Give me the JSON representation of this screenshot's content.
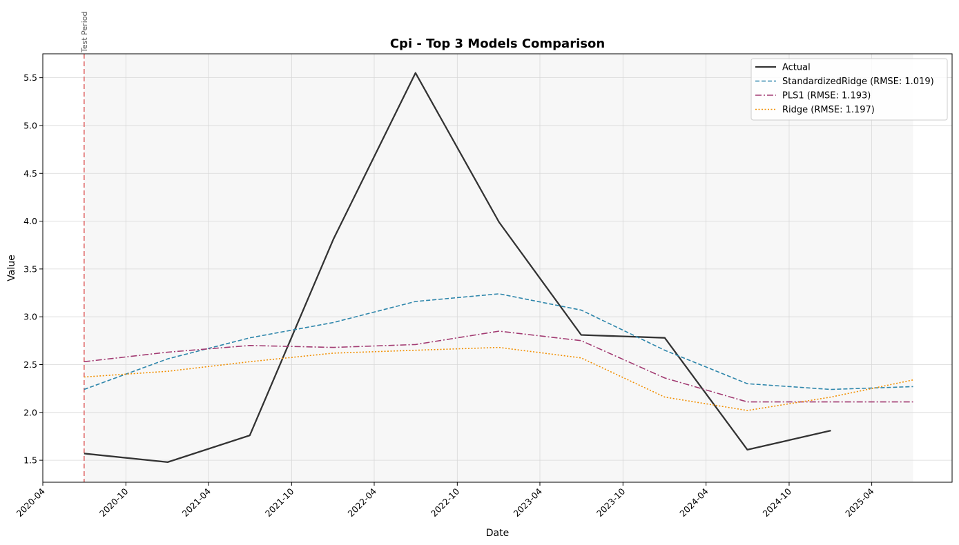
{
  "chart_data": {
    "type": "line",
    "title": "Cpi - Top 3 Models Comparison",
    "xlabel": "Date",
    "ylabel": "Value",
    "xlim": [
      "2020-04-01",
      "2025-09-25"
    ],
    "ylim": [
      1.27,
      5.75
    ],
    "x_ticks": [
      "2020-04",
      "2020-10",
      "2021-04",
      "2021-10",
      "2022-04",
      "2022-10",
      "2023-04",
      "2023-10",
      "2024-04",
      "2024-10",
      "2025-04"
    ],
    "y_ticks": [
      1.5,
      2.0,
      2.5,
      3.0,
      3.5,
      4.0,
      4.5,
      5.0,
      5.5
    ],
    "grid": true,
    "legend_position": "top-right",
    "test_period_marker": {
      "date": "2020-07-01",
      "label": "Test Period",
      "color": "#e06666"
    },
    "test_period_shade": {
      "start": "2020-07-01",
      "end": "2025-07-01",
      "color": "#f2f2f2"
    },
    "series": [
      {
        "name": "Actual",
        "color": "#333333",
        "style": "solid",
        "x": [
          "2020-07-01",
          "2021-01-01",
          "2021-07-01",
          "2022-01-01",
          "2022-07-01",
          "2023-01-01",
          "2023-07-01",
          "2024-01-01",
          "2024-07-01",
          "2025-01-01"
        ],
        "values": [
          1.57,
          1.48,
          1.76,
          3.81,
          5.55,
          3.99,
          2.81,
          2.78,
          1.61,
          1.81
        ]
      },
      {
        "name": "StandardizedRidge (RMSE: 1.019)",
        "color": "#2e86ab",
        "style": "dashed",
        "x": [
          "2020-07-01",
          "2021-01-01",
          "2021-07-01",
          "2022-01-01",
          "2022-07-01",
          "2023-01-01",
          "2023-07-01",
          "2024-01-01",
          "2024-07-01",
          "2025-01-01",
          "2025-07-01"
        ],
        "values": [
          2.24,
          2.56,
          2.78,
          2.94,
          3.16,
          3.24,
          3.07,
          2.65,
          2.3,
          2.24,
          2.27
        ]
      },
      {
        "name": "PLS1 (RMSE: 1.193)",
        "color": "#a23b72",
        "style": "dashdot",
        "x": [
          "2020-07-01",
          "2021-01-01",
          "2021-07-01",
          "2022-01-01",
          "2022-07-01",
          "2023-01-01",
          "2023-07-01",
          "2024-01-01",
          "2024-07-01",
          "2025-01-01",
          "2025-07-01"
        ],
        "values": [
          2.53,
          2.63,
          2.7,
          2.68,
          2.71,
          2.85,
          2.75,
          2.36,
          2.11,
          2.11,
          2.11
        ]
      },
      {
        "name": "Ridge (RMSE: 1.197)",
        "color": "#f18f01",
        "style": "dotted",
        "x": [
          "2020-07-01",
          "2021-01-01",
          "2021-07-01",
          "2022-01-01",
          "2022-07-01",
          "2023-01-01",
          "2023-07-01",
          "2024-01-01",
          "2024-07-01",
          "2025-01-01",
          "2025-07-01"
        ],
        "values": [
          2.37,
          2.43,
          2.53,
          2.62,
          2.65,
          2.68,
          2.57,
          2.16,
          2.02,
          2.16,
          2.34
        ]
      }
    ]
  }
}
